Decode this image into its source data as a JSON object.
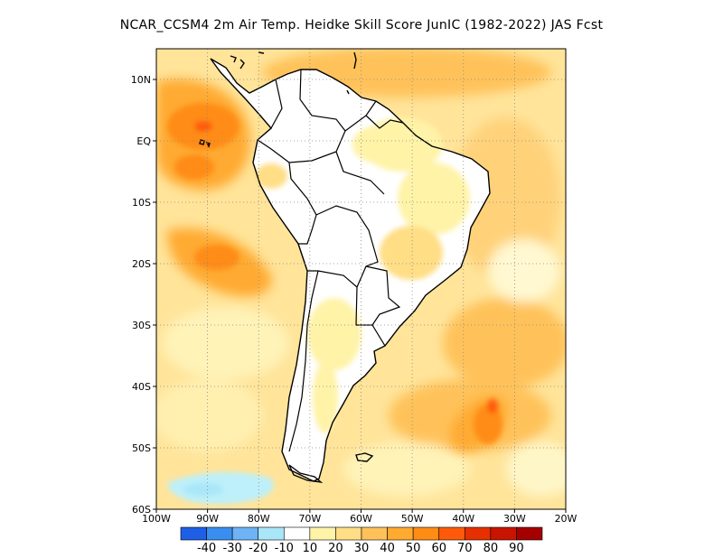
{
  "title": "NCAR_CCSM4  2m Air Temp. Heidke Skill Score JunIC (1982-2022) JAS Fcst",
  "map": {
    "lon_range": [
      -100,
      -20
    ],
    "lat_range": [
      -60,
      15
    ],
    "lat_ticks": [
      {
        "lat": 10,
        "label": "10N"
      },
      {
        "lat": 0,
        "label": "EQ"
      },
      {
        "lat": -10,
        "label": "10S"
      },
      {
        "lat": -20,
        "label": "20S"
      },
      {
        "lat": -30,
        "label": "30S"
      },
      {
        "lat": -40,
        "label": "40S"
      },
      {
        "lat": -50,
        "label": "50S"
      },
      {
        "lat": -60,
        "label": "60S"
      }
    ],
    "lon_ticks": [
      {
        "lon": -100,
        "label": "100W"
      },
      {
        "lon": -90,
        "label": "90W"
      },
      {
        "lon": -80,
        "label": "80W"
      },
      {
        "lon": -70,
        "label": "70W"
      },
      {
        "lon": -60,
        "label": "60W"
      },
      {
        "lon": -50,
        "label": "50W"
      },
      {
        "lon": -40,
        "label": "40W"
      },
      {
        "lon": -30,
        "label": "30W"
      },
      {
        "lon": -20,
        "label": "20W"
      }
    ],
    "regions": [
      {
        "name": "eastern-pacific-equatorial-high-skill",
        "level": 50
      },
      {
        "name": "southeast-pacific-high-skill",
        "level": 50
      },
      {
        "name": "south-atlantic-high-skill",
        "level": 50
      },
      {
        "name": "southern-ocean-negative-skill",
        "level": -20
      }
    ]
  },
  "colorbar": {
    "colors": [
      "#1e5fe6",
      "#3a8ef0",
      "#6db3f5",
      "#a8e6f8",
      "#ffffff",
      "#fff3a8",
      "#ffde86",
      "#ffc25a",
      "#ffaa30",
      "#ff8c14",
      "#ff5a0a",
      "#e63000",
      "#c81400",
      "#a50000"
    ],
    "labels": [
      "-40",
      "-30",
      "-20",
      "-10",
      "10",
      "20",
      "30",
      "40",
      "50",
      "60",
      "70",
      "80",
      "90"
    ]
  }
}
